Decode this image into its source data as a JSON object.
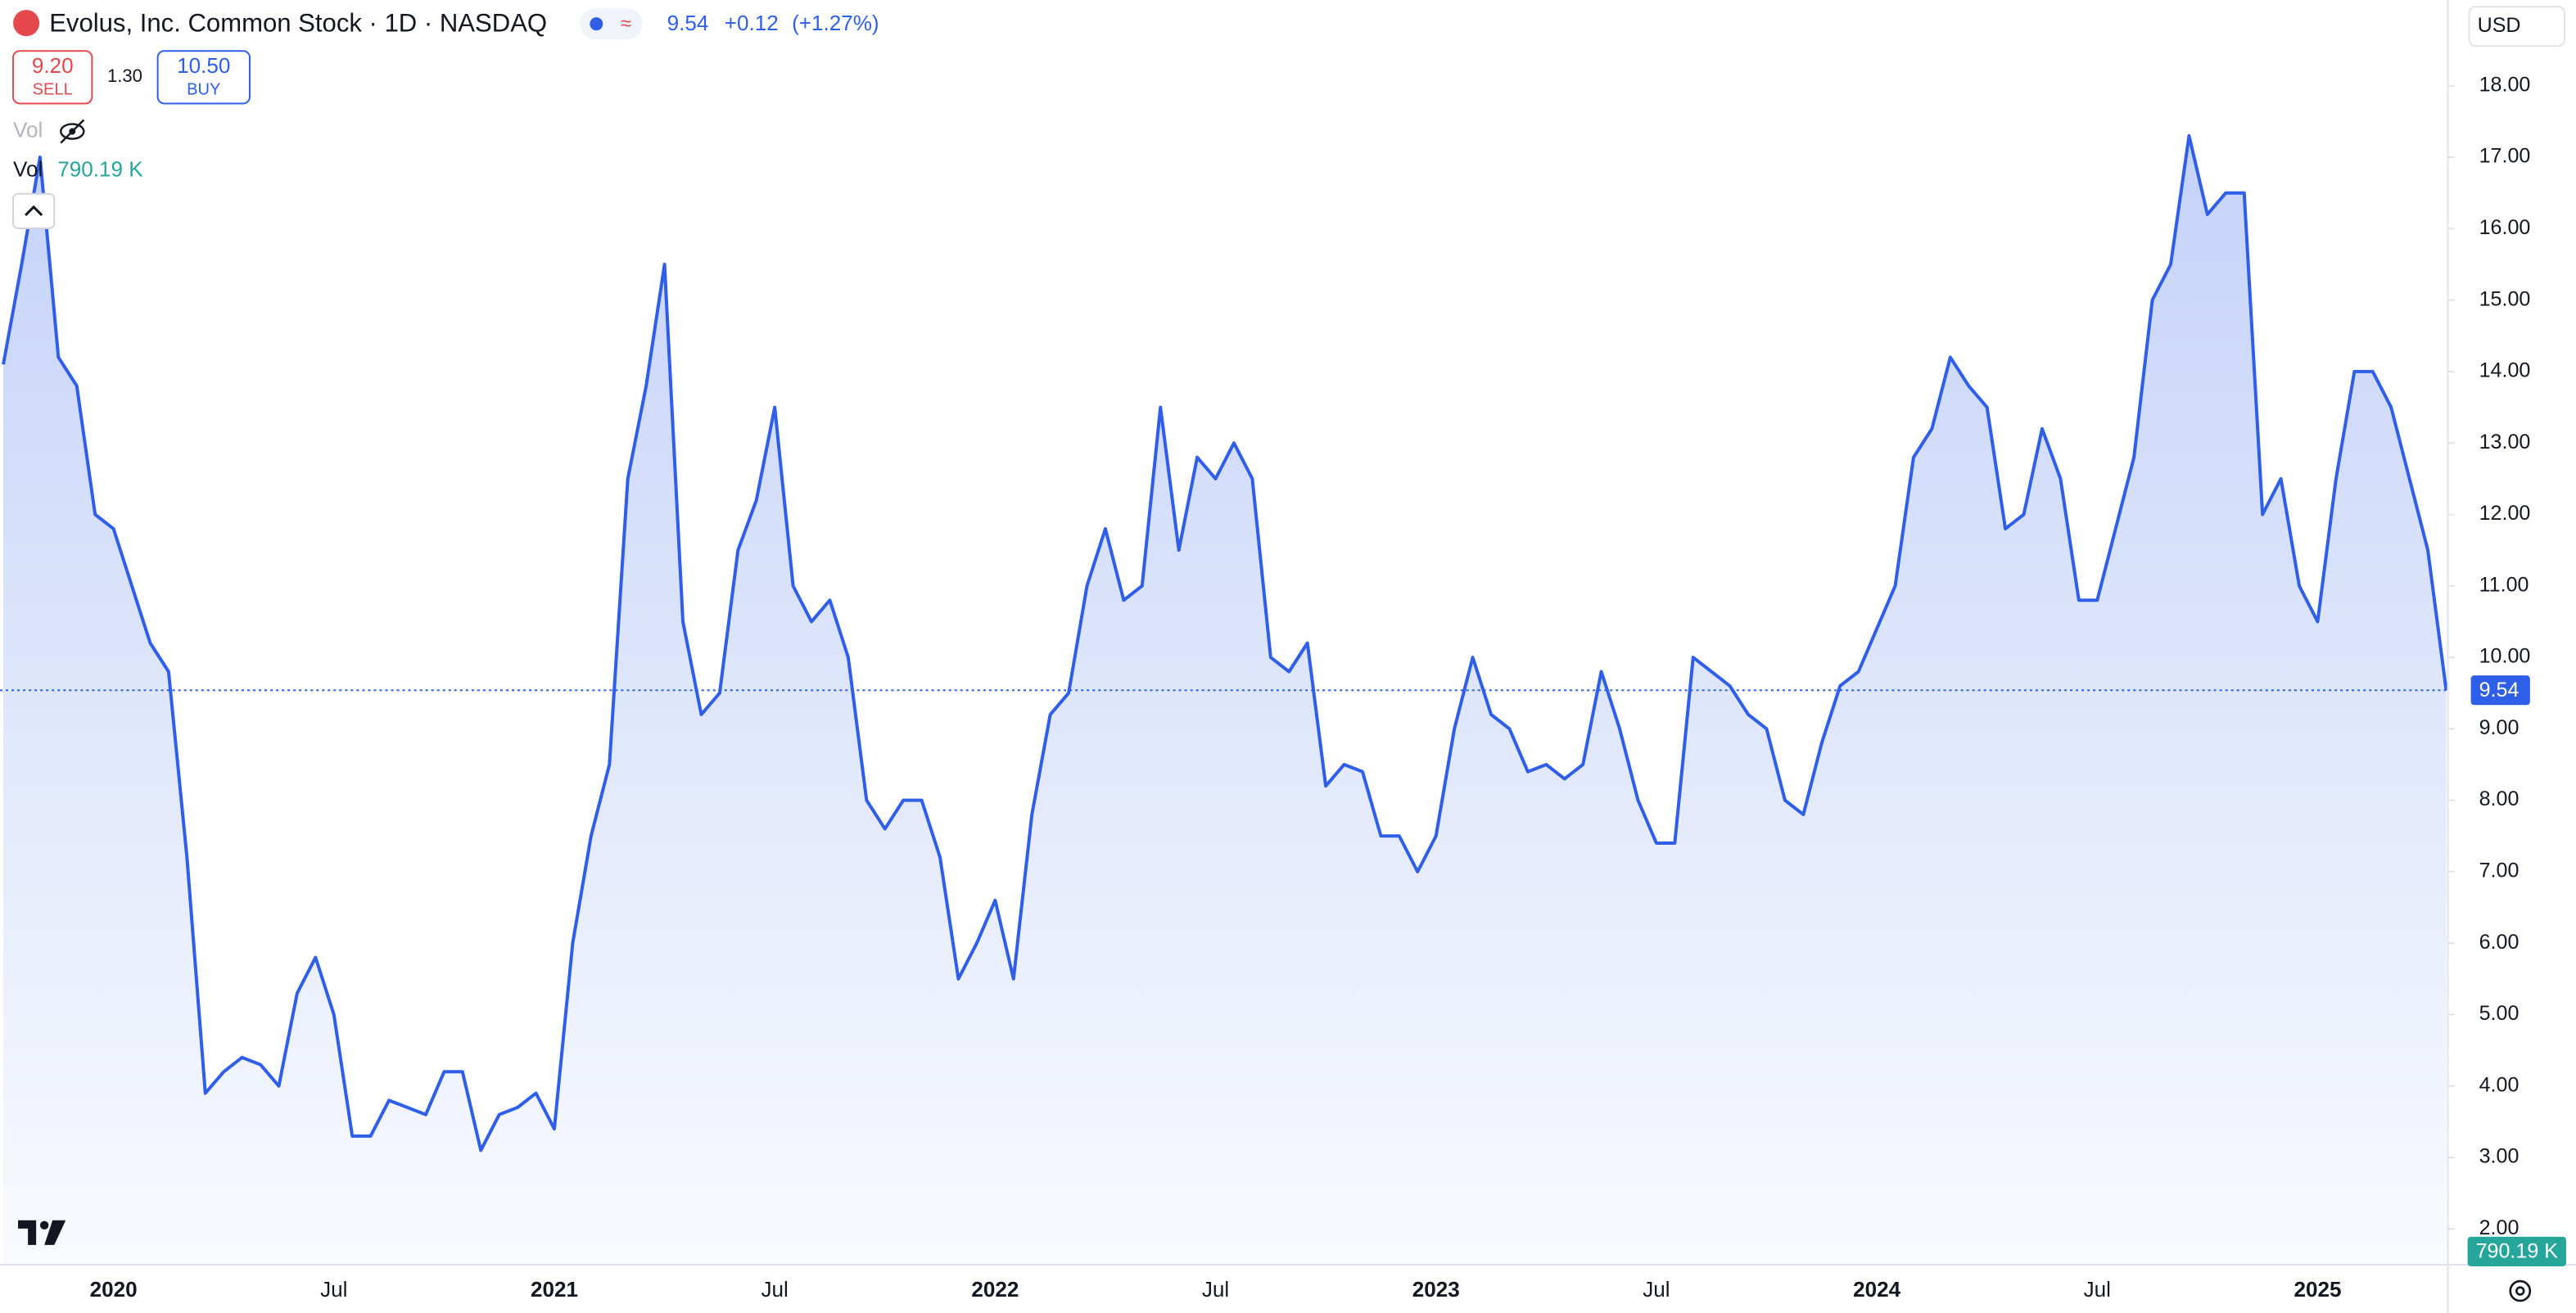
{
  "chart_data": {
    "type": "line",
    "title": "Evolus, Inc. Common Stock · 1D · NASDAQ",
    "last_price": 9.54,
    "change": "+0.12",
    "change_pct": "(+1.27%)",
    "sell": {
      "price": "9.20",
      "label": "SELL"
    },
    "spread": "1.30",
    "buy": {
      "price": "10.50",
      "label": "BUY"
    },
    "volume_label": "Vol",
    "volume": "790.19 K",
    "currency": "USD",
    "color": "#2f5fe8",
    "categories": [
      null,
      null,
      null,
      null,
      null,
      null,
      "2020",
      null,
      null,
      null,
      null,
      null,
      null,
      null,
      null,
      null,
      null,
      null,
      "Jul",
      null,
      null,
      null,
      null,
      null,
      null,
      null,
      null,
      null,
      null,
      null,
      "2021",
      null,
      null,
      null,
      null,
      null,
      null,
      null,
      null,
      null,
      null,
      null,
      "Jul",
      null,
      null,
      null,
      null,
      null,
      null,
      null,
      null,
      null,
      null,
      null,
      "2022",
      null,
      null,
      null,
      null,
      null,
      null,
      null,
      null,
      null,
      null,
      null,
      "Jul",
      null,
      null,
      null,
      null,
      null,
      null,
      null,
      null,
      null,
      null,
      null,
      "2023",
      null,
      null,
      null,
      null,
      null,
      null,
      null,
      null,
      null,
      null,
      null,
      "Jul",
      null,
      null,
      null,
      null,
      null,
      null,
      null,
      null,
      null,
      null,
      null,
      "2024",
      null,
      null,
      null,
      null,
      null,
      null,
      null,
      null,
      null,
      null,
      null,
      "Jul",
      null,
      null,
      null,
      null,
      null,
      null,
      null,
      null,
      null,
      null,
      null,
      "2025",
      null,
      null,
      null,
      null,
      null,
      null,
      null
    ],
    "values": [
      14.1,
      15.5,
      17.0,
      14.2,
      13.8,
      12.0,
      11.8,
      11.0,
      10.2,
      9.8,
      7.2,
      3.9,
      4.2,
      4.4,
      4.3,
      4.0,
      5.3,
      5.8,
      5.0,
      3.3,
      3.3,
      3.8,
      3.7,
      3.6,
      4.2,
      4.2,
      3.1,
      3.6,
      3.7,
      3.9,
      3.4,
      6.0,
      7.5,
      8.5,
      12.5,
      13.8,
      15.5,
      10.5,
      9.2,
      9.5,
      11.5,
      12.2,
      13.5,
      11.0,
      10.5,
      10.8,
      10.0,
      8.0,
      7.6,
      8.0,
      8.0,
      7.2,
      5.5,
      6.0,
      6.6,
      5.5,
      7.8,
      9.2,
      9.5,
      11.0,
      11.8,
      10.8,
      11.0,
      13.5,
      11.5,
      12.8,
      12.5,
      13.0,
      12.5,
      10.0,
      9.8,
      10.2,
      8.2,
      8.5,
      8.4,
      7.5,
      7.5,
      7.0,
      7.5,
      9.0,
      10.0,
      9.2,
      9.0,
      8.4,
      8.5,
      8.3,
      8.5,
      9.8,
      9.0,
      8.0,
      7.4,
      7.4,
      10.0,
      9.8,
      9.6,
      9.2,
      9.0,
      8.0,
      7.8,
      8.8,
      9.6,
      9.8,
      10.4,
      11.0,
      12.8,
      13.2,
      14.2,
      13.8,
      13.5,
      11.8,
      12.0,
      13.2,
      12.5,
      10.8,
      10.8,
      11.8,
      12.8,
      15.0,
      15.5,
      17.3,
      16.2,
      16.5,
      16.5,
      12.0,
      12.5,
      11.0,
      10.5,
      12.5,
      14.0,
      14.0,
      13.5,
      12.5,
      11.5,
      9.54
    ],
    "ylim": [
      1.5,
      19.2
    ],
    "yticks": [
      {
        "value": 18,
        "label": "18.00"
      },
      {
        "value": 17,
        "label": "17.00"
      },
      {
        "value": 16,
        "label": "16.00"
      },
      {
        "value": 15,
        "label": "15.00"
      },
      {
        "value": 14,
        "label": "14.00"
      },
      {
        "value": 13,
        "label": "13.00"
      },
      {
        "value": 12,
        "label": "12.00"
      },
      {
        "value": 11,
        "label": "11.00"
      },
      {
        "value": 10,
        "label": "10.00"
      },
      {
        "value": 9,
        "label": "9.00"
      },
      {
        "value": 8,
        "label": "8.00"
      },
      {
        "value": 7,
        "label": "7.00"
      },
      {
        "value": 6,
        "label": "6.00"
      },
      {
        "value": 5,
        "label": "5.00"
      },
      {
        "value": 4,
        "label": "4.00"
      },
      {
        "value": 3,
        "label": "3.00"
      },
      {
        "value": 2,
        "label": "2.00"
      }
    ]
  }
}
